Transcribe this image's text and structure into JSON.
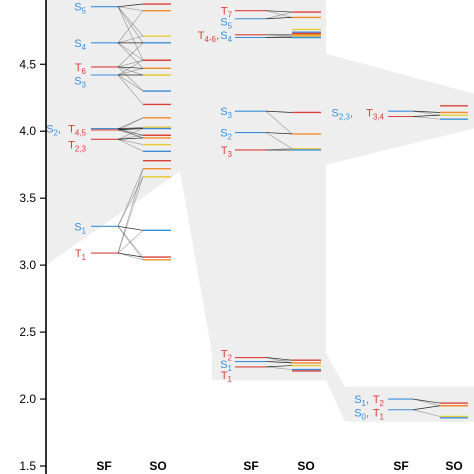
{
  "colors": {
    "singlet": "#3b8fd9",
    "triplet": "#d9413b",
    "connector": "#111111",
    "band": "#eeeeee",
    "spin_orbit_orange": "#f08c28",
    "spin_orbit_yellow": "#e7cc3a"
  },
  "chart_data": {
    "type": "energy-level diagram",
    "title": "",
    "xlabel": "",
    "ylabel": "",
    "ylim": [
      1.5,
      4.98
    ],
    "y_ticks": [
      "1.5",
      "2.0",
      "2.5",
      "3.0",
      "3.5",
      "4.0",
      "4.5"
    ],
    "x_labels": [
      "SF",
      "SO",
      "SF",
      "SO",
      "SF",
      "SO"
    ],
    "panels": [
      {
        "group_range": [
          3.0,
          4.98
        ],
        "sf_levels": [
          {
            "label": "S5",
            "energy": 4.93,
            "kind": "S"
          },
          {
            "label": "S4",
            "energy": 4.66,
            "kind": "S"
          },
          {
            "label": "T6",
            "energy": 4.48,
            "kind": "T"
          },
          {
            "label": "S3",
            "energy": 4.42,
            "kind": "S"
          },
          {
            "label": "S2,T4,5",
            "energy": 4.02,
            "kind": "S"
          },
          {
            "label": "",
            "energy": 4.01,
            "kind": "T"
          },
          {
            "label": "T2,3",
            "energy": 3.94,
            "kind": "T"
          },
          {
            "label": "S1",
            "energy": 3.29,
            "kind": "S"
          },
          {
            "label": "T1",
            "energy": 3.09,
            "kind": "T"
          }
        ],
        "so_levels": [
          4.95,
          4.9,
          4.71,
          4.66,
          4.53,
          4.47,
          4.42,
          4.3,
          4.2,
          4.1,
          4.03,
          4.02,
          3.97,
          3.95,
          3.9,
          3.85,
          3.78,
          3.72,
          3.66,
          3.26,
          3.06,
          3.04
        ]
      },
      {
        "group_range": [
          4.74,
          4.98
        ],
        "sf_levels": [
          {
            "label": "T7",
            "energy": 4.9,
            "kind": "T"
          },
          {
            "label": "S5",
            "energy": 4.84,
            "kind": "S"
          },
          {
            "label": "T4-6,S4",
            "energy": 4.72,
            "kind": "T"
          },
          {
            "label": "",
            "energy": 4.7,
            "kind": "S"
          },
          {
            "label": "S3",
            "energy": 4.15,
            "kind": "S"
          },
          {
            "label": "S2",
            "energy": 3.99,
            "kind": "S"
          },
          {
            "label": "T3",
            "energy": 3.86,
            "kind": "T"
          },
          {
            "label": "T2",
            "energy": 2.31,
            "kind": "T"
          },
          {
            "label": "S1",
            "energy": 2.28,
            "kind": "S"
          },
          {
            "label": "T1",
            "energy": 2.24,
            "kind": "T"
          }
        ],
        "so_levels": [
          4.89,
          4.85,
          4.76,
          4.74,
          4.73,
          4.72,
          4.71,
          4.7,
          4.14,
          3.98,
          3.87,
          3.86,
          2.29,
          2.27,
          2.25,
          2.22,
          2.21
        ]
      },
      {
        "group_range": [
          1.83,
          2.09
        ],
        "sf_levels": [
          {
            "label": "S2,3,T3,4",
            "energy": 4.15,
            "kind": "S"
          },
          {
            "label": "",
            "energy": 4.11,
            "kind": "T"
          },
          {
            "label": "S1,T2",
            "energy": 2.0,
            "kind": "S"
          },
          {
            "label": "S0,T1",
            "energy": 1.92,
            "kind": "S"
          }
        ],
        "so_levels": [
          4.19,
          4.14,
          4.12,
          4.09,
          1.97,
          1.95,
          1.87,
          1.86
        ]
      }
    ]
  },
  "label_text": {
    "p1_S5": [
      "S",
      "5"
    ],
    "p1_S4": [
      "S",
      "4"
    ],
    "p1_T6": [
      "T",
      "6"
    ],
    "p1_S3": [
      "S",
      "3"
    ],
    "p1_S2": [
      "S",
      "2"
    ],
    "p1_T45": [
      "T",
      "4,5"
    ],
    "p1_T23": [
      "T",
      "2,3"
    ],
    "p1_S1": [
      "S",
      "1"
    ],
    "p1_T1": [
      "T",
      "1"
    ],
    "p2_T7": [
      "T",
      "7"
    ],
    "p2_S5": [
      "S",
      "5"
    ],
    "p2_T46": [
      "T",
      "4-6"
    ],
    "p2_S4": [
      "S",
      "4"
    ],
    "p2_S3": [
      "S",
      "3"
    ],
    "p2_S2": [
      "S",
      "2"
    ],
    "p2_T3": [
      "T",
      "3"
    ],
    "p2_T2": [
      "T",
      "2"
    ],
    "p2_S1": [
      "S",
      "1"
    ],
    "p2_T1": [
      "T",
      "1"
    ],
    "p3_S23": [
      "S",
      "2,3"
    ],
    "p3_T34": [
      "T",
      "3,4"
    ],
    "p3_S1": [
      "S",
      "1"
    ],
    "p3_T2": [
      "T",
      "2"
    ],
    "p3_S0": [
      "S",
      "0"
    ],
    "p3_T1": [
      "T",
      "1"
    ]
  }
}
